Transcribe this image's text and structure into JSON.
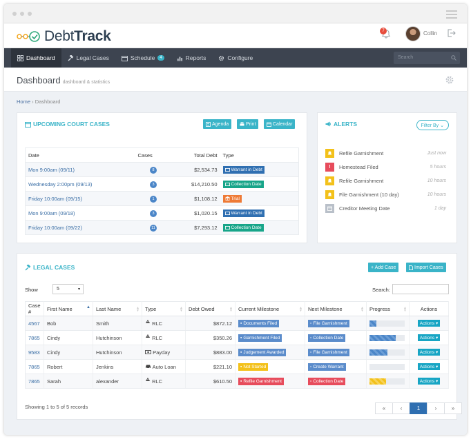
{
  "app": {
    "logo_text_light": "Debt",
    "logo_text_bold": "Track",
    "notification_count": "7",
    "user_name": "Collin"
  },
  "nav": {
    "items": [
      {
        "label": "Dashboard",
        "icon": "dashboard-icon",
        "active": true
      },
      {
        "label": "Legal Cases",
        "icon": "gavel-icon"
      },
      {
        "label": "Schedule",
        "icon": "calendar-icon",
        "badge": "4"
      },
      {
        "label": "Reports",
        "icon": "chart-icon"
      },
      {
        "label": "Configure",
        "icon": "gear-icon"
      }
    ],
    "search_placeholder": "Search"
  },
  "page": {
    "title": "Dashboard",
    "subtitle": "dashboard & statistics",
    "breadcrumb_home": "Home",
    "breadcrumb_sep": "›",
    "breadcrumb_current": "Dashboard"
  },
  "court": {
    "title": "UPCOMING COURT CASES",
    "buttons": {
      "agenda": "Agenda",
      "print": "Print",
      "calendar": "Calendar"
    },
    "headers": {
      "date": "Date",
      "cases": "Cases",
      "total": "Total Debt",
      "type": "Type"
    },
    "rows": [
      {
        "date": "Mon 9:00am (09/11)",
        "cases": "8",
        "total": "$2,534.73",
        "type": "Warrant in Debt",
        "color": "#2f6fb1"
      },
      {
        "date": "Wednesday 2:00pm (09/13)",
        "cases": "3",
        "total": "$14,210.50",
        "type": "Collection Date",
        "color": "#17a589"
      },
      {
        "date": "Friday 10:00am (09/15)",
        "cases": "1",
        "total": "$1,108.12",
        "type": "Trial",
        "color": "#ee7a36"
      },
      {
        "date": "Mon 9:00am (09/18)",
        "cases": "3",
        "total": "$1,020.15",
        "type": "Warrant in Debt",
        "color": "#2f6fb1"
      },
      {
        "date": "Friday 10:00am (09/22)",
        "cases": "11",
        "total": "$7,293.12",
        "type": "Collection Date",
        "color": "#17a589"
      }
    ]
  },
  "alerts": {
    "title": "ALERTS",
    "filter_label": "Filter By",
    "items": [
      {
        "label": "Refile Garnishment",
        "time": "Just now",
        "color": "#f3c11a",
        "icon": "bell-icon"
      },
      {
        "label": "Homestead Filed",
        "time": "5 hours",
        "color": "#e74c5c",
        "icon": "exclamation-icon"
      },
      {
        "label": "Refile Garnishment",
        "time": "10 hours",
        "color": "#f3c11a",
        "icon": "bell-icon"
      },
      {
        "label": "File Garnishment (10 day)",
        "time": "10 hours",
        "color": "#f3c11a",
        "icon": "bell-icon"
      },
      {
        "label": "Creditor Meeting Date",
        "time": "1 day",
        "color": "#b9c0c9",
        "icon": "calendar-icon"
      }
    ]
  },
  "legal": {
    "title": "LEGAL CASES",
    "buttons": {
      "add": "+ Add Case",
      "import": "Import Cases"
    },
    "show_label": "Show",
    "show_value": "5",
    "search_label": "Search:",
    "headers": {
      "case": "Case #",
      "first": "First Name",
      "last": "Last Name",
      "type": "Type",
      "owed": "Debt Owed",
      "current": "Current Milestone",
      "next": "Next Milestone",
      "progress": "Progress",
      "actions": "Actions"
    },
    "rows": [
      {
        "id": "4567",
        "first": "Bob",
        "last": "Smith",
        "type": "RLC",
        "type_icon": "recycle-icon",
        "owed": "$872.12",
        "current": "Documents Filed",
        "current_color": "#5b8ccb",
        "next": "File Garnishment",
        "next_color": "#5b8ccb",
        "progress": 0.2,
        "progress_color": "blue"
      },
      {
        "id": "7865",
        "first": "Cindy",
        "last": "Hutchinson",
        "type": "RLC",
        "type_icon": "recycle-icon",
        "owed": "$350.26",
        "current": "Garnishment Filed",
        "current_color": "#5b8ccb",
        "next": "Collection Date",
        "next_color": "#5b8ccb",
        "progress": 0.75,
        "progress_color": "blue"
      },
      {
        "id": "9583",
        "first": "Cindy",
        "last": "Hutchinson",
        "type": "Payday",
        "type_icon": "money-icon",
        "owed": "$883.00",
        "current": "Judgement Awarded",
        "current_color": "#5b8ccb",
        "next": "File Garnishment",
        "next_color": "#5b8ccb",
        "progress": 0.5,
        "progress_color": "blue"
      },
      {
        "id": "7865",
        "first": "Robert",
        "last": "Jenkins",
        "type": "Auto Loan",
        "type_icon": "car-icon",
        "owed": "$221.10",
        "current": "Not Started",
        "current_color": "#f3c11a",
        "next": "Create Warrant",
        "next_color": "#5b8ccb",
        "progress": 0.0,
        "progress_color": "blue"
      },
      {
        "id": "7865",
        "first": "Sarah",
        "last": "alexander",
        "type": "RLC",
        "type_icon": "recycle-icon",
        "owed": "$610.50",
        "current": "Refile Garnishment",
        "current_color": "#e74c5c",
        "next": "Collection Date",
        "next_color": "#e74c5c",
        "progress": 0.48,
        "progress_color": "yellow"
      }
    ],
    "action_label": "Actions",
    "footer": "Showing 1 to 5 of 5 records",
    "pager": [
      "«",
      "‹",
      "1",
      "›",
      "»"
    ]
  }
}
